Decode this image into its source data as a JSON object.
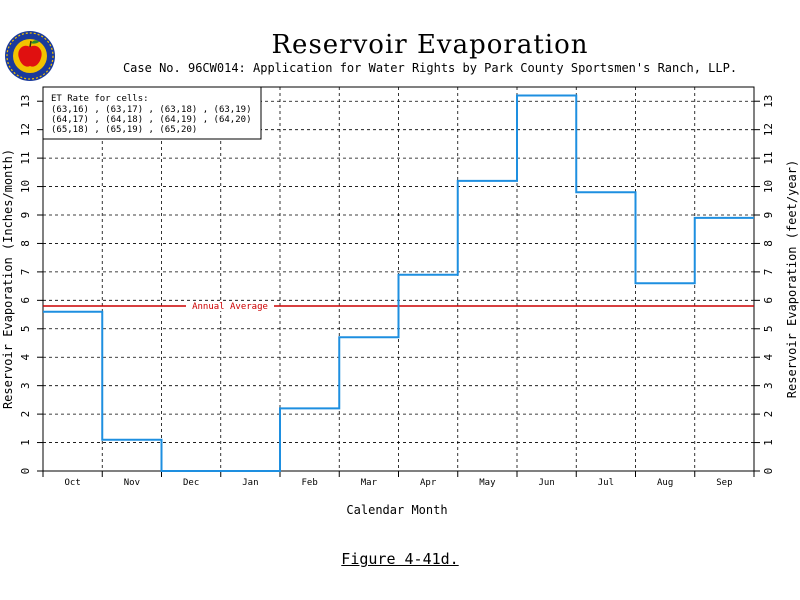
{
  "title": "Reservoir Evaporation",
  "subtitle": "Case No. 96CW014: Application for Water Rights by Park County Sportsmen's Ranch, LLP.",
  "figure_caption": "Figure 4-41d.",
  "colors": {
    "series": "#1e8fe0",
    "average": "#cc0000",
    "grid": "#000000",
    "logo_ring": "#1a3a9c",
    "logo_inner": "#f2c200",
    "logo_apple": "#e01010"
  },
  "logo": {
    "icon": "apple-seal-icon"
  },
  "chart_data": {
    "type": "line",
    "step": true,
    "xlabel": "Calendar Month",
    "ylabel_left": "Reservoir Evaporation (Inches/month)",
    "ylabel_right": "Reservoir Evaporation (feet/year)",
    "categories": [
      "Oct",
      "Nov",
      "Dec",
      "Jan",
      "Feb",
      "Mar",
      "Apr",
      "May",
      "Jun",
      "Jul",
      "Aug",
      "Sep"
    ],
    "values": [
      5.6,
      1.1,
      0.0,
      0.0,
      2.2,
      4.7,
      6.9,
      10.2,
      13.2,
      9.8,
      6.6,
      8.9
    ],
    "ylim": [
      0,
      13.5
    ],
    "yticks": [
      0,
      1,
      2,
      3,
      4,
      5,
      6,
      7,
      8,
      9,
      10,
      11,
      12,
      13
    ],
    "annual_average": {
      "label": "Annual Average",
      "value": 5.8
    },
    "legend": {
      "title": "ET Rate for cells:",
      "lines": [
        "(63,16) , (63,17) , (63,18) , (63,19)",
        "(64,17) , (64,18) , (64,19) , (64,20)",
        "(65,18) , (65,19) , (65,20)"
      ],
      "position": "top-left"
    },
    "grid": true
  }
}
